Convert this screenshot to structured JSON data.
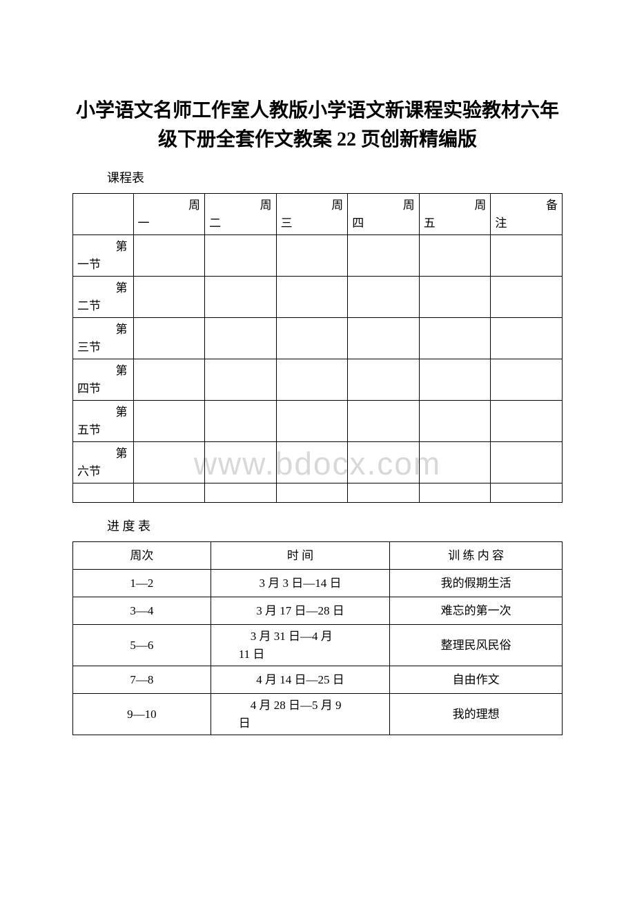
{
  "title": "小学语文名师工作室人教版小学语文新课程实验教材六年级下册全套作文教案 22 页创新精编版",
  "watermark": "www.bdocx.com",
  "schedule": {
    "label": "课程表",
    "headers": {
      "mon": "周一",
      "tue": "周二",
      "wed": "周三",
      "thu": "周四",
      "fri": "周五",
      "note": "备注"
    },
    "periods": {
      "p1": "第一节",
      "p2": "第二节",
      "p3": "第三节",
      "p4": "第四节",
      "p5": "第五节",
      "p6": "第六节"
    }
  },
  "progress": {
    "label": "进 度 表",
    "headers": {
      "week": "周次",
      "time": "时 间",
      "content": "训 练 内 容"
    },
    "rows": [
      {
        "week": "1—2",
        "time": "3 月 3 日—14 日",
        "content": "我的假期生活",
        "tall": false,
        "date_align": "center"
      },
      {
        "week": "3—4",
        "time": "3 月 17 日—28 日",
        "content": "难忘的第一次",
        "tall": false,
        "date_align": "center"
      },
      {
        "week": "5—6",
        "time": "3 月 31 日—4 月11 日",
        "content": "整理民风民俗",
        "tall": true,
        "date_align": "left"
      },
      {
        "week": "7—8",
        "time": "4 月 14 日—25 日",
        "content": "自由作文",
        "tall": false,
        "date_align": "center"
      },
      {
        "week": "9—10",
        "time": "4 月 28 日—5 月 9日",
        "content": "我的理想",
        "tall": true,
        "date_align": "left"
      }
    ]
  },
  "colors": {
    "text": "#000000",
    "border": "#000000",
    "background": "#ffffff",
    "watermark": "#d8d8d8"
  }
}
